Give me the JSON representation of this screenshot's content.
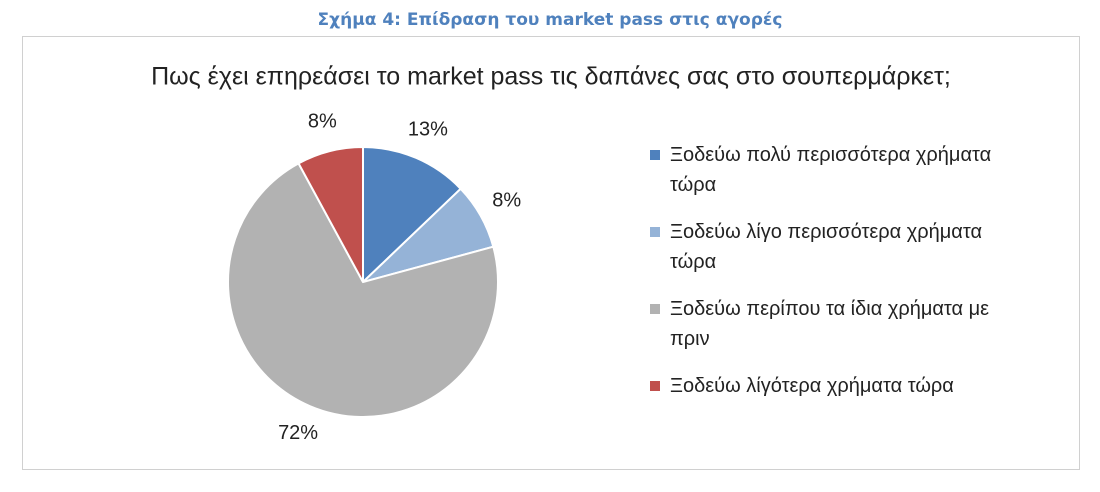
{
  "caption": "Σχήμα 4: Επίδραση του market pass στις αγορές",
  "chart_data": {
    "type": "pie",
    "title": "Πως έχει επηρεάσει το market pass τις δαπάνες σας στο σουπερμάρκετ;",
    "categories": [
      "Ξοδεύω πολύ περισσότερα χρήματα τώρα",
      "Ξοδεύω λίγο περισσότερα χρήματα τώρα",
      "Ξοδεύω περίπου τα ίδια χρήματα με πριν",
      "Ξοδεύω λίγότερα χρήματα τώρα"
    ],
    "values": [
      13,
      8,
      72,
      8
    ],
    "value_labels": [
      "13%",
      "8%",
      "72%",
      "8%"
    ],
    "colors": [
      "#4f81bd",
      "#95b3d7",
      "#b2b2b2",
      "#c0504d"
    ],
    "legend": "right"
  }
}
